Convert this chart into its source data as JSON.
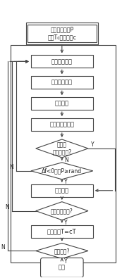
{
  "bg_color": "#ffffff",
  "ec": "#444444",
  "fc": "#ffffff",
  "tc": "#222222",
  "ac": "#444444",
  "fig_w": 1.73,
  "fig_h": 3.95,
  "dpi": 100,
  "title_text1": "确定初始解集P",
  "title_text2": "初温T₀衰减因子c",
  "box1": "构造邻域解集",
  "box2": "计算目标函数",
  "box3": "非列分层",
  "box4": "构造当前解空间",
  "d1_text": "邻域解\n属于第一层?",
  "d2_text": "Δf<0，且P≥rand",
  "box5": "生成新解",
  "d3_text": "新解集构造完?",
  "box6": "降低温度T=cT",
  "d4_text": "迭代终止?",
  "end_text": "结束",
  "Y": "Y",
  "N": "N"
}
